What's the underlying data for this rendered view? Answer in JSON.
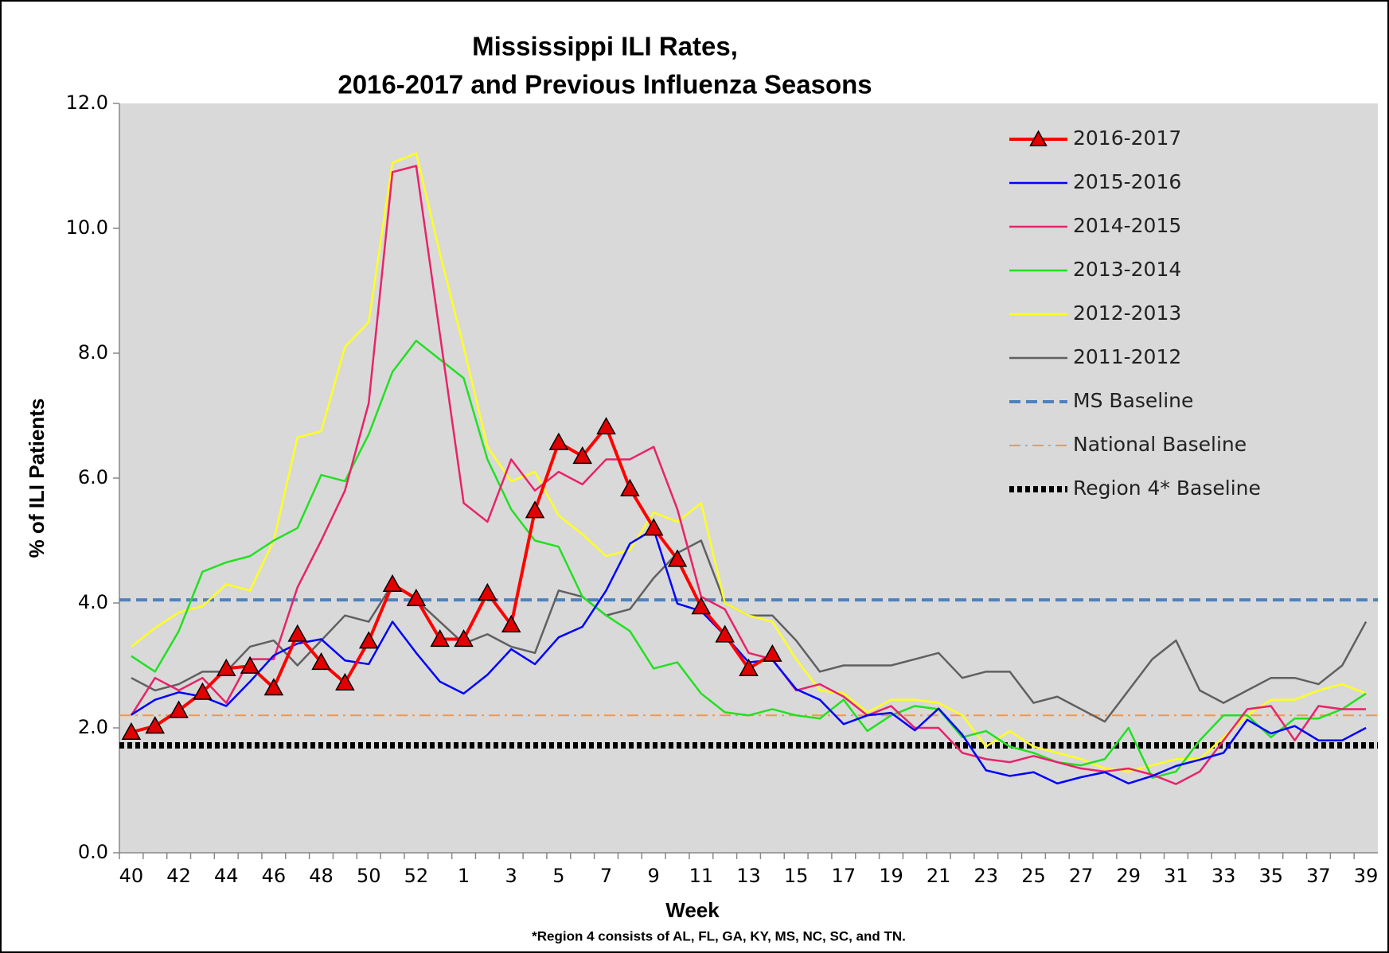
{
  "chart_data": {
    "type": "line",
    "title": [
      "Mississippi ILI Rates,",
      "2016-2017 and Previous Influenza Seasons"
    ],
    "x_label": "Week",
    "y_label": "% of ILI Patients",
    "annotation": "*Region 4 consists of AL, FL, GA, KY, MS, NC, SC, and TN.",
    "categories": [
      "40",
      null,
      "42",
      null,
      "44",
      null,
      "46",
      null,
      "48",
      null,
      "50",
      null,
      "52",
      null,
      "1",
      null,
      "3",
      null,
      "5",
      null,
      "7",
      null,
      "9",
      null,
      "11",
      null,
      "13",
      null,
      "15",
      null,
      "17",
      null,
      "19",
      null,
      "21",
      null,
      "23",
      null,
      "25",
      null,
      "27",
      null,
      "29",
      null,
      "31",
      null,
      "33",
      null,
      "35",
      null,
      "37",
      null,
      "39"
    ],
    "ylim": [
      0,
      12
    ],
    "yticks": [
      {
        "value": 0,
        "label": "0.0"
      },
      {
        "value": 2,
        "label": "2.0"
      },
      {
        "value": 4,
        "label": "4.0"
      },
      {
        "value": 6,
        "label": "6.0"
      },
      {
        "value": 8,
        "label": "8.0"
      },
      {
        "value": 10,
        "label": "10.0"
      },
      {
        "value": 12,
        "label": "12.0"
      }
    ],
    "legend": "upper right",
    "series": [
      {
        "name": "2016-2017",
        "color": "#ff0000",
        "marker": "triangle",
        "width": 4,
        "values": [
          1.93,
          2.03,
          2.28,
          2.57,
          2.95,
          2.99,
          2.64,
          3.5,
          3.05,
          2.72,
          3.39,
          4.3,
          4.07,
          3.42,
          3.42,
          4.16,
          3.65,
          5.48,
          6.57,
          6.35,
          6.82,
          5.83,
          5.2,
          4.7,
          3.94,
          3.49,
          2.95,
          3.18,
          null,
          null,
          null,
          null,
          null,
          null,
          null,
          null,
          null,
          null,
          null,
          null,
          null,
          null,
          null,
          null,
          null,
          null,
          null,
          null,
          null,
          null,
          null,
          null,
          null
        ]
      },
      {
        "name": "2015-2016",
        "color": "#0000ff",
        "width": 2.5,
        "values": [
          2.21,
          2.45,
          2.57,
          2.5,
          2.35,
          2.74,
          3.16,
          3.35,
          3.42,
          3.08,
          3.02,
          3.7,
          3.2,
          2.74,
          2.55,
          2.85,
          3.26,
          3.02,
          3.45,
          3.62,
          4.2,
          4.95,
          5.18,
          3.99,
          3.87,
          3.48,
          3.05,
          3.09,
          2.62,
          2.45,
          2.06,
          2.2,
          2.24,
          1.96,
          2.31,
          1.89,
          1.32,
          1.23,
          1.29,
          1.11,
          1.21,
          1.29,
          1.11,
          1.23,
          1.39,
          1.49,
          1.6,
          2.13,
          1.91,
          2.03,
          1.8,
          1.8,
          2.0
        ]
      },
      {
        "name": "2014-2015",
        "color": "#e8236b",
        "width": 2.5,
        "values": [
          2.2,
          2.8,
          2.6,
          2.8,
          2.4,
          3.1,
          3.1,
          4.25,
          5.0,
          5.8,
          7.2,
          10.9,
          11.0,
          8.3,
          5.6,
          5.3,
          6.3,
          5.8,
          6.1,
          5.9,
          6.3,
          6.3,
          6.5,
          5.5,
          4.1,
          3.9,
          3.2,
          3.1,
          2.6,
          2.7,
          2.5,
          2.2,
          2.35,
          2.0,
          2.0,
          1.6,
          1.5,
          1.45,
          1.55,
          1.45,
          1.35,
          1.3,
          1.35,
          1.25,
          1.1,
          1.3,
          1.8,
          2.3,
          2.35,
          1.8,
          2.35,
          2.3,
          2.3
        ]
      },
      {
        "name": "2013-2014",
        "color": "#22e022",
        "width": 2.5,
        "values": [
          3.15,
          2.9,
          3.55,
          4.5,
          4.65,
          4.75,
          5.0,
          5.2,
          6.05,
          5.95,
          6.7,
          7.7,
          8.2,
          7.9,
          7.6,
          6.3,
          5.5,
          5.0,
          4.9,
          4.1,
          3.8,
          3.55,
          2.95,
          3.05,
          2.55,
          2.25,
          2.2,
          2.3,
          2.2,
          2.15,
          2.45,
          1.95,
          2.2,
          2.35,
          2.3,
          1.85,
          1.95,
          1.7,
          1.6,
          1.45,
          1.4,
          1.5,
          2.0,
          1.2,
          1.3,
          1.8,
          2.2,
          2.2,
          1.85,
          2.15,
          2.15,
          2.3,
          2.55
        ]
      },
      {
        "name": "2012-2013",
        "color": "#ffff22",
        "width": 2.5,
        "values": [
          3.3,
          3.6,
          3.85,
          3.95,
          4.3,
          4.2,
          5.0,
          6.65,
          6.75,
          8.1,
          8.5,
          11.05,
          11.2,
          9.6,
          8.1,
          6.5,
          5.95,
          6.1,
          5.4,
          5.1,
          4.75,
          4.85,
          5.45,
          5.3,
          5.6,
          4.0,
          3.8,
          3.7,
          3.1,
          2.6,
          2.55,
          2.25,
          2.45,
          2.45,
          2.4,
          2.2,
          1.7,
          1.95,
          1.7,
          1.6,
          1.5,
          1.35,
          1.3,
          1.4,
          1.5,
          1.5,
          1.85,
          2.2,
          2.45,
          2.45,
          2.6,
          2.7,
          2.55
        ]
      },
      {
        "name": "2011-2012",
        "color": "#606060",
        "width": 2.5,
        "values": [
          2.8,
          2.6,
          2.7,
          2.9,
          2.9,
          3.3,
          3.4,
          3.0,
          3.4,
          3.8,
          3.7,
          4.3,
          4.05,
          3.7,
          3.35,
          3.5,
          3.3,
          3.2,
          4.2,
          4.1,
          3.8,
          3.9,
          4.4,
          4.8,
          5.0,
          4.0,
          3.8,
          3.8,
          3.4,
          2.9,
          3.0,
          3.0,
          3.0,
          3.1,
          3.2,
          2.8,
          2.9,
          2.9,
          2.4,
          2.5,
          2.3,
          2.1,
          2.6,
          3.1,
          3.4,
          2.6,
          2.4,
          2.6,
          2.8,
          2.8,
          2.7,
          3.0,
          3.7
        ]
      }
    ],
    "baselines": [
      {
        "name": "MS Baseline",
        "value": 4.05,
        "color": "#4f81bd",
        "style": "dashed"
      },
      {
        "name": "National Baseline",
        "value": 2.2,
        "color": "#f79646",
        "style": "dashdot"
      },
      {
        "name": "Region 4* Baseline",
        "value": 1.72,
        "color": "#000000",
        "style": "dotted"
      }
    ]
  }
}
